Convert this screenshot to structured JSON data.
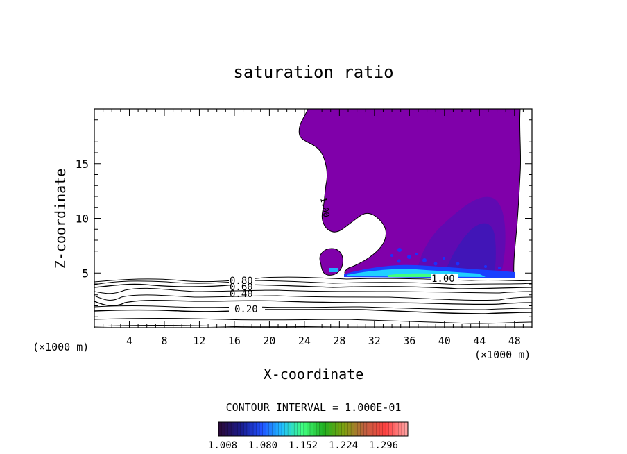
{
  "chart_data": {
    "type": "contour",
    "title": "saturation ratio",
    "xlabel": "X-coordinate",
    "ylabel": "Z-coordinate",
    "x_unit_left": "(×1000 m)",
    "x_unit_right": "(×1000 m)",
    "xlim": [
      0,
      50
    ],
    "ylim": [
      0,
      20
    ],
    "xticks": [
      4,
      8,
      12,
      16,
      20,
      24,
      28,
      32,
      36,
      40,
      44,
      48
    ],
    "yticks": [
      5,
      10,
      15
    ],
    "contour_labels": [
      {
        "text": "0.80",
        "x": 17,
        "z": 4.3
      },
      {
        "text": "0.60",
        "x": 17,
        "z": 3.8
      },
      {
        "text": "0.40",
        "x": 17,
        "z": 3.1
      },
      {
        "text": "0.20",
        "x": 17.5,
        "z": 1.8
      },
      {
        "text": "1.00",
        "x": 39.7,
        "z": 4.5
      },
      {
        "text": "1.00",
        "x": 26.3,
        "z": 10.5
      }
    ],
    "contour_interval_text": "CONTOUR INTERVAL = 1.000E-01",
    "colorbar": {
      "labels": [
        "1.008",
        "1.080",
        "1.152",
        "1.224",
        "1.296"
      ],
      "min": 1.008,
      "max": 1.296,
      "colors": [
        "#2a0a3a",
        "#1a1a8a",
        "#2050ff",
        "#20c0ff",
        "#40ff80",
        "#20b020",
        "#80a010",
        "#c06040",
        "#ff4040",
        "#ffa0a0"
      ]
    },
    "fill_colors": {
      "supersaturated_main": "#8000aa",
      "higher_saturation": "#4a10b0",
      "cloud_base": "#20d0ff"
    }
  }
}
